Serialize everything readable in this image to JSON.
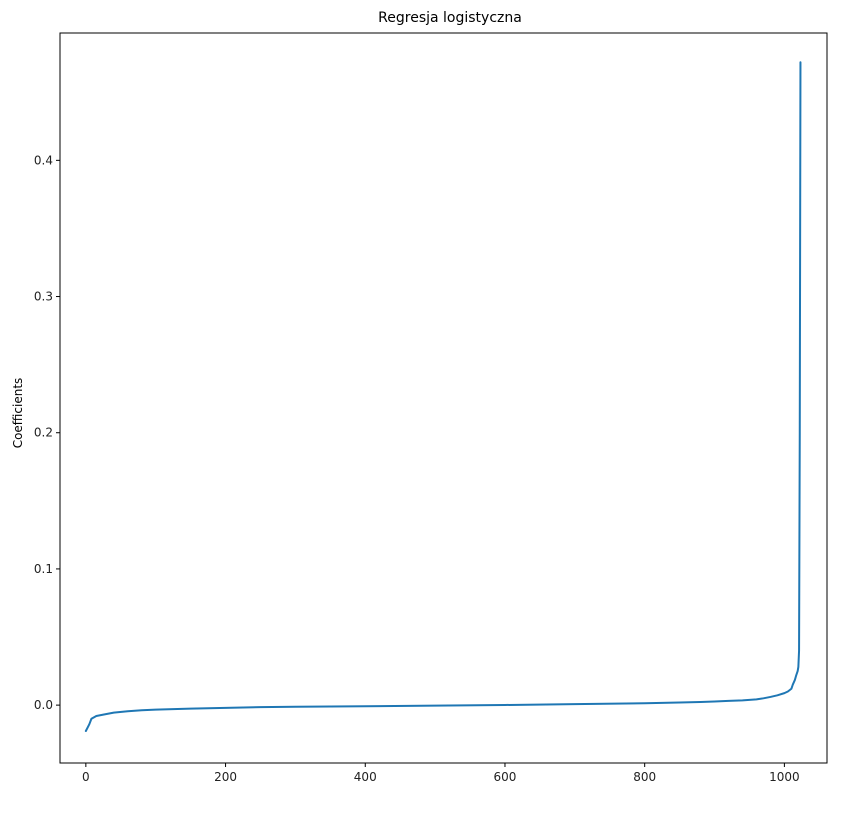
{
  "chart_data": {
    "type": "line",
    "title": "Regresja logistyczna",
    "xlabel": "",
    "ylabel": "Coefficients",
    "xlim": [
      -37,
      1061
    ],
    "ylim": [
      -0.0425,
      0.4935
    ],
    "xticks": [
      0,
      200,
      400,
      600,
      800,
      1000
    ],
    "yticks": [
      0.0,
      0.1,
      0.2,
      0.3,
      0.4
    ],
    "xtick_labels": [
      "0",
      "200",
      "400",
      "600",
      "800",
      "1000"
    ],
    "ytick_labels": [
      "0.0",
      "0.1",
      "0.2",
      "0.3",
      "0.4"
    ],
    "grid": false,
    "series": [
      {
        "color": "#1f77b4",
        "x": [
          0,
          3,
          5,
          8,
          15,
          25,
          40,
          60,
          80,
          100,
          150,
          200,
          250,
          300,
          400,
          500,
          600,
          700,
          800,
          850,
          880,
          900,
          920,
          940,
          960,
          970,
          980,
          990,
          1000,
          1005,
          1010,
          1012,
          1015,
          1017,
          1019,
          1020,
          1021,
          1022,
          1023
        ],
        "y": [
          -0.019,
          -0.016,
          -0.014,
          -0.01,
          -0.008,
          -0.007,
          -0.0055,
          -0.0045,
          -0.0038,
          -0.0033,
          -0.0026,
          -0.002,
          -0.0015,
          -0.0012,
          -0.0008,
          -0.0004,
          0.0001,
          0.0007,
          0.0014,
          0.0019,
          0.0023,
          0.0027,
          0.0031,
          0.0035,
          0.0042,
          0.005,
          0.006,
          0.0072,
          0.0088,
          0.01,
          0.012,
          0.015,
          0.0185,
          0.022,
          0.025,
          0.028,
          0.04,
          0.2,
          0.472
        ]
      }
    ]
  }
}
